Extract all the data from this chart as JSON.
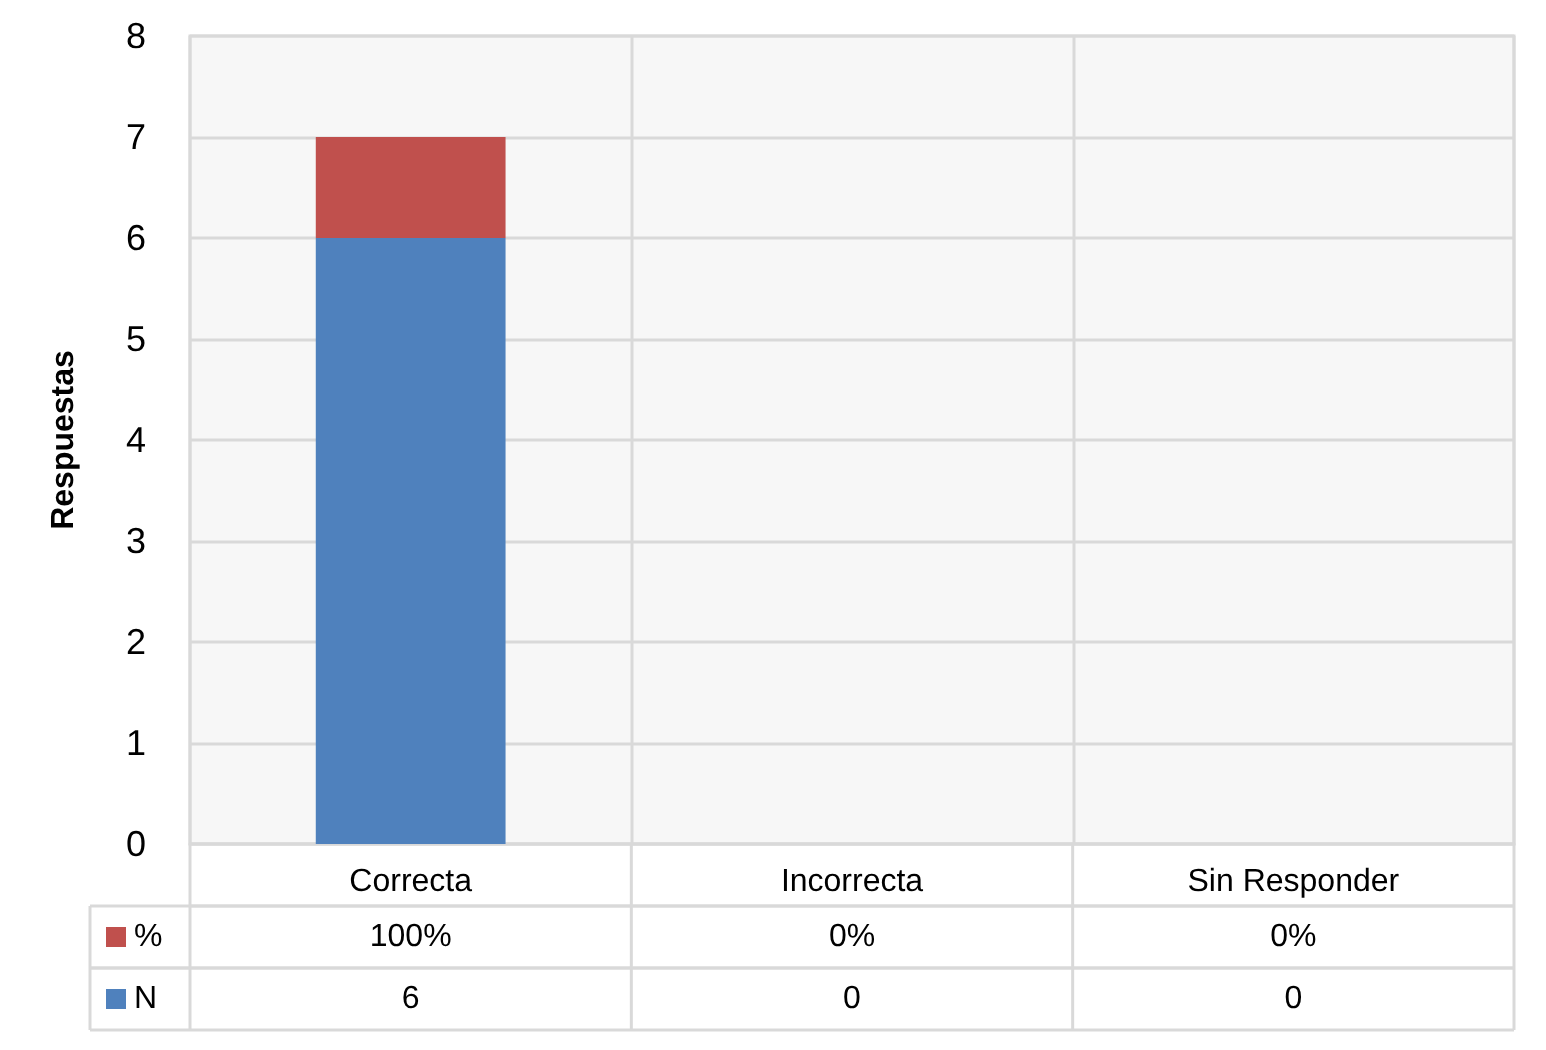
{
  "chart_data": {
    "type": "bar",
    "stacked": true,
    "ylabel": "Respuestas",
    "categories": [
      "Correcta",
      "Incorrecta",
      "Sin Responder"
    ],
    "series": [
      {
        "name": "N",
        "color": "#4f81bd",
        "values": [
          6,
          0,
          0
        ],
        "value_labels": [
          "6",
          "0",
          "0"
        ]
      },
      {
        "name": "%",
        "color": "#c0504d",
        "values": [
          1,
          0,
          0
        ],
        "value_labels": [
          "100%",
          "0%",
          "0%"
        ]
      }
    ],
    "ylim": [
      0,
      8
    ],
    "yticks": [
      0,
      1,
      2,
      3,
      4,
      5,
      6,
      7,
      8
    ],
    "grid": true,
    "legend": "bottom left"
  }
}
